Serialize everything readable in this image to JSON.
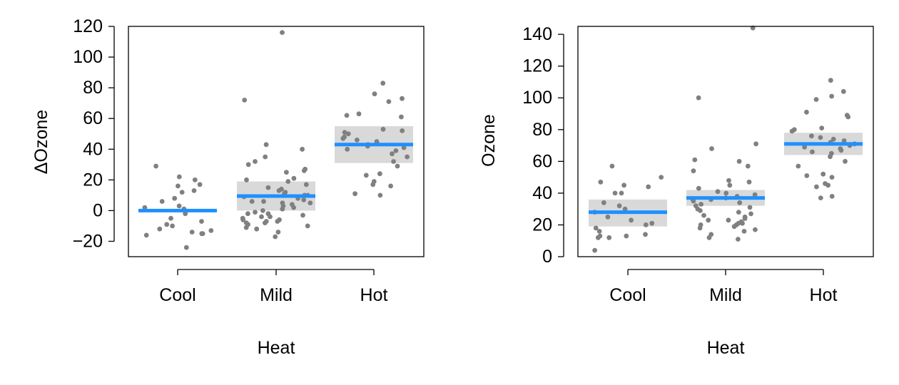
{
  "chart_data": [
    {
      "type": "scatter",
      "xlabel": "Heat",
      "ylabel": "ΔOzone",
      "categories": [
        "Cool",
        "Mild",
        "Hot"
      ],
      "ylim": [
        -30,
        120
      ],
      "yticks": [
        -20,
        0,
        20,
        40,
        60,
        80,
        100,
        120
      ],
      "ytick_labels": [
        "−20",
        "0",
        "20",
        "40",
        "60",
        "80",
        "100",
        "120"
      ],
      "fit": [
        {
          "category": "Cool",
          "estimate": 0,
          "lower": 0,
          "upper": 0
        },
        {
          "category": "Mild",
          "estimate": 9.5,
          "lower": 0,
          "upper": 19
        },
        {
          "category": "Hot",
          "estimate": 43,
          "lower": 31,
          "upper": 55
        }
      ],
      "points": [
        {
          "category": "Cool",
          "values": [
            29,
            13,
            12,
            8,
            6,
            17,
            20,
            16,
            22,
            3,
            2,
            1,
            -2,
            -5,
            -7,
            -9,
            -10,
            -12,
            -13,
            -14,
            -15,
            -15,
            -16,
            -24
          ]
        },
        {
          "category": "Mild",
          "values": [
            116,
            72,
            43,
            40,
            32,
            26,
            25,
            21,
            20,
            19,
            17,
            14,
            13,
            12,
            11,
            10,
            10,
            9,
            8,
            7,
            6,
            6,
            5,
            5,
            4,
            3,
            2,
            1,
            0,
            -1,
            -2,
            -2,
            -3,
            -4,
            -4,
            -5,
            -6,
            -6,
            -7,
            -7,
            -8,
            -8,
            -9,
            -10,
            -11,
            -12,
            -14,
            -17,
            35,
            30,
            15,
            27
          ]
        },
        {
          "category": "Hot",
          "values": [
            83,
            76,
            73,
            71,
            62,
            63,
            61,
            53,
            52,
            51,
            50,
            48,
            47,
            46,
            45,
            44,
            43,
            42,
            41,
            40,
            39,
            37,
            35,
            32,
            29,
            24,
            23,
            19,
            17,
            16,
            11,
            10
          ]
        }
      ]
    },
    {
      "type": "scatter",
      "xlabel": "Heat",
      "ylabel": "Ozone",
      "categories": [
        "Cool",
        "Mild",
        "Hot"
      ],
      "ylim": [
        0,
        145
      ],
      "yticks": [
        0,
        20,
        40,
        60,
        80,
        100,
        120,
        140
      ],
      "ytick_labels": [
        "0",
        "20",
        "40",
        "60",
        "80",
        "100",
        "120",
        "140"
      ],
      "fit": [
        {
          "category": "Cool",
          "estimate": 28,
          "lower": 19,
          "upper": 36
        },
        {
          "category": "Mild",
          "estimate": 37,
          "lower": 32,
          "upper": 42
        },
        {
          "category": "Hot",
          "estimate": 71,
          "lower": 64,
          "upper": 78
        }
      ],
      "points": [
        {
          "category": "Cool",
          "values": [
            57,
            50,
            47,
            45,
            44,
            40,
            40,
            34,
            32,
            30,
            28,
            25,
            23,
            21,
            20,
            18,
            16,
            14,
            13,
            12,
            13,
            12,
            4
          ]
        },
        {
          "category": "Mild",
          "values": [
            144,
            100,
            71,
            68,
            61,
            60,
            57,
            54,
            48,
            47,
            45,
            43,
            41,
            40,
            39,
            38,
            37,
            36,
            36,
            35,
            34,
            33,
            32,
            31,
            30,
            29,
            28,
            27,
            26,
            25,
            24,
            23,
            23,
            22,
            21,
            21,
            20,
            20,
            19,
            18,
            17,
            16,
            14,
            12,
            11
          ]
        },
        {
          "category": "Hot",
          "values": [
            111,
            104,
            101,
            99,
            91,
            89,
            88,
            81,
            80,
            79,
            76,
            75,
            74,
            73,
            72,
            71,
            70,
            69,
            68,
            67,
            66,
            65,
            63,
            60,
            57,
            52,
            51,
            50,
            46,
            45,
            44,
            38,
            37
          ]
        }
      ]
    }
  ]
}
